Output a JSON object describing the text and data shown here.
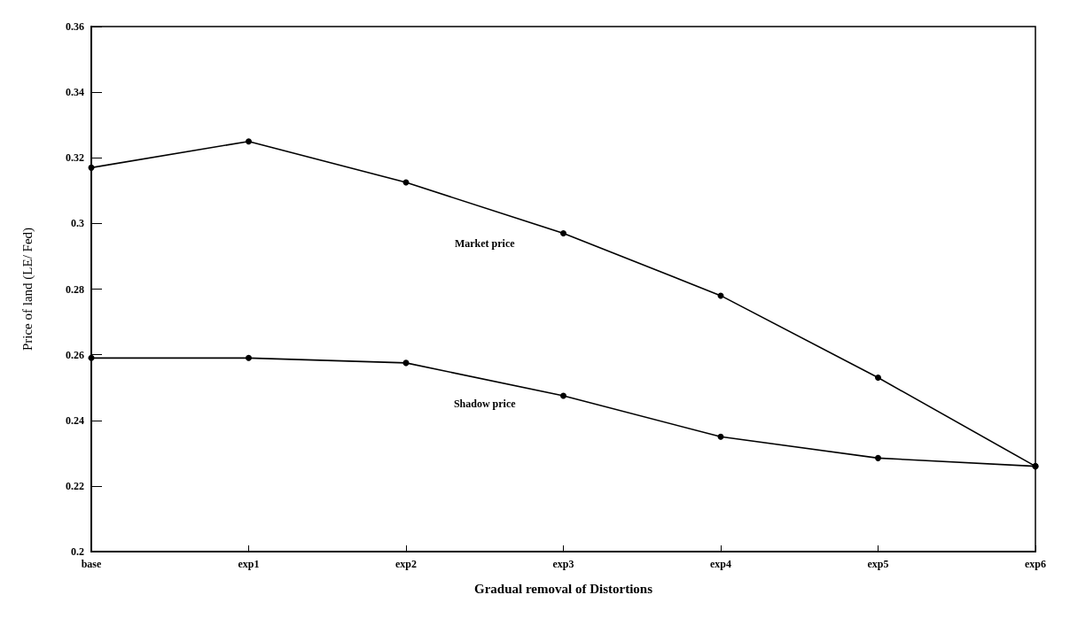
{
  "chart_data": {
    "type": "line",
    "xlabel": "Gradual removal of Distortions",
    "ylabel": "Price of land (LE/ Fed)",
    "categories": [
      "base",
      "exp1",
      "exp2",
      "exp3",
      "exp4",
      "exp5",
      "exp6"
    ],
    "series": [
      {
        "name": "Market price",
        "color": "#000000",
        "values": [
          0.317,
          0.325,
          0.3125,
          0.297,
          0.278,
          0.253,
          0.226
        ]
      },
      {
        "name": "Shadow price",
        "color": "#000000",
        "values": [
          0.259,
          0.259,
          0.2575,
          0.2475,
          0.235,
          0.2285,
          0.226
        ]
      }
    ],
    "ylim": [
      0.2,
      0.36
    ],
    "yticks": [
      0.2,
      0.22,
      0.24,
      0.26,
      0.28,
      0.3,
      0.32,
      0.34,
      0.36
    ],
    "grid": false,
    "legend": false,
    "marker": "circle",
    "line_style": "solid"
  }
}
